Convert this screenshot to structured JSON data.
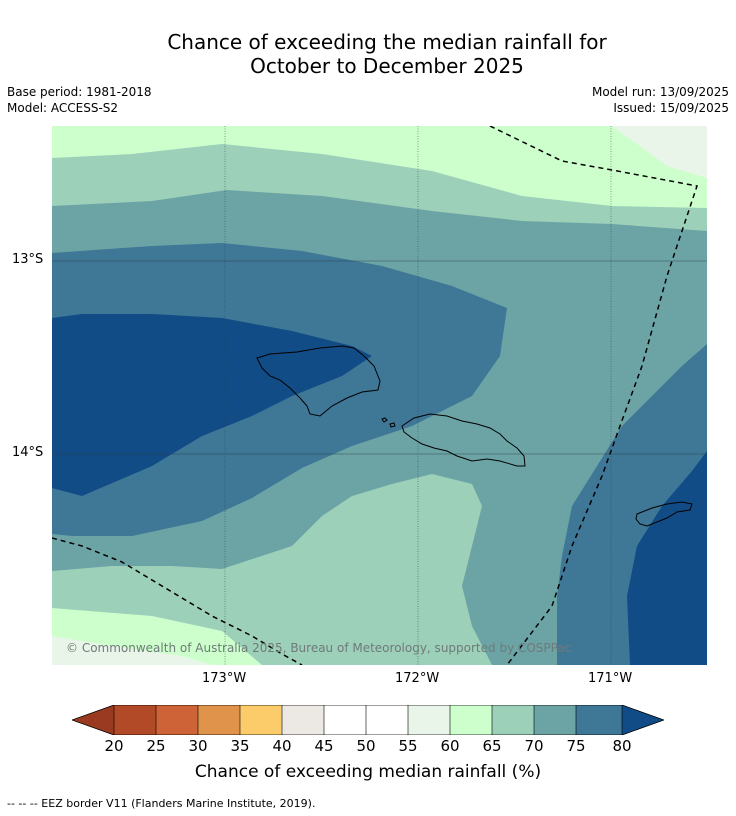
{
  "title_line1": "Chance of exceeding the median rainfall for",
  "title_line2": "October to December 2025",
  "base_period": "Base period: 1981-2018",
  "model": "Model: ACCESS-S2",
  "model_run": "Model run: 13/09/2025",
  "issued": "Issued: 15/09/2025",
  "lat_labels": [
    "13°S",
    "14°S"
  ],
  "lon_labels": [
    "173°W",
    "172°W",
    "171°W"
  ],
  "copyright": "© Commonwealth of Australia 2025, Bureau of Meteorology, supported by COSPPac",
  "colorbar": {
    "label": "Chance of exceeding median rainfall (%)",
    "ticks": [
      "20",
      "25",
      "30",
      "35",
      "40",
      "45",
      "50",
      "55",
      "60",
      "65",
      "70",
      "75",
      "80"
    ],
    "colors": [
      "#b34a27",
      "#cd6336",
      "#e0944b",
      "#fccc6a",
      "#ece9e5",
      "#ffffff",
      "#ffffff",
      "#e8f5e8",
      "#ccffcc",
      "#9dd0b9",
      "#6ca4a6",
      "#3f7797",
      "#124c87"
    ],
    "under_color": "#9a3a20",
    "over_color": "#124c87"
  },
  "footnote": "-- -- -- EEZ border V11 (Flanders Marine Institute, 2019).",
  "legend_colors": {
    "c55_60": "#e8f5e8",
    "c60_65": "#ccffcc",
    "c65_70": "#9dd0b9",
    "c70_75": "#6ca4a6",
    "c75_80": "#3f7797",
    "c80": "#124c87"
  }
}
